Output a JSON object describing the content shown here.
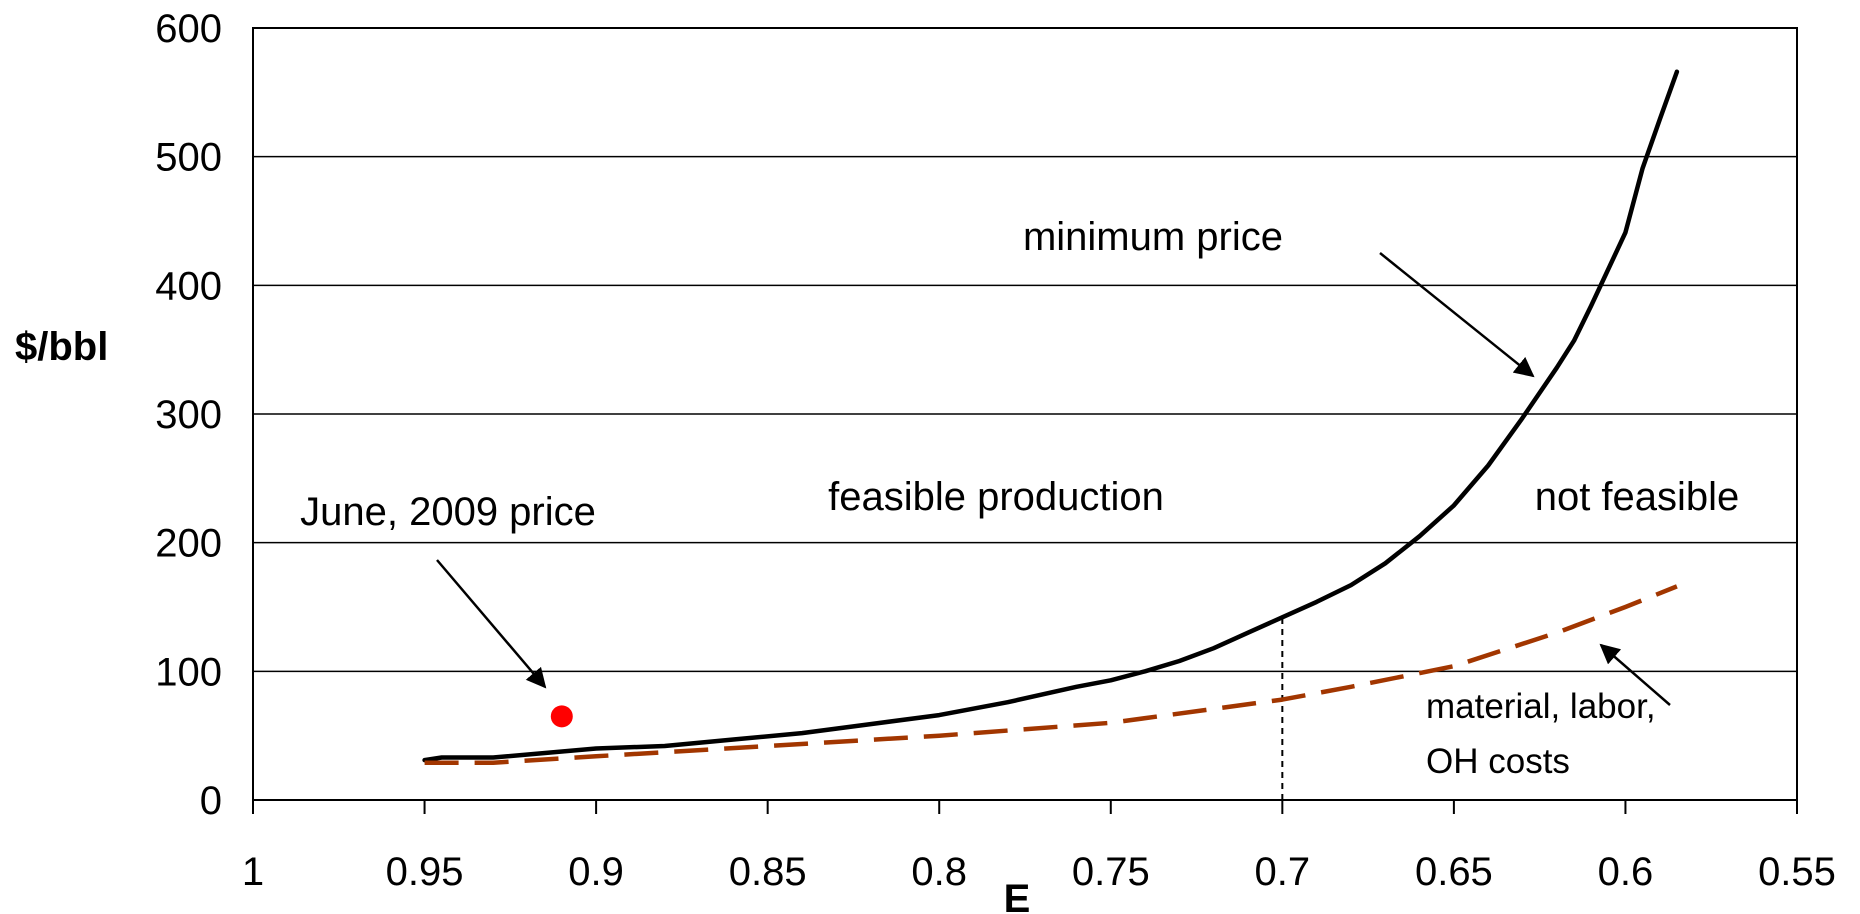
{
  "chart_data": {
    "type": "line",
    "xlabel": "E",
    "ylabel": "$/bbl",
    "xlim": [
      1,
      0.55
    ],
    "x_reversed": true,
    "ylim": [
      0,
      600
    ],
    "x_ticks": [
      1,
      0.95,
      0.9,
      0.85,
      0.8,
      0.75,
      0.7,
      0.65,
      0.6,
      0.55
    ],
    "y_ticks": [
      0,
      100,
      200,
      300,
      400,
      500,
      600
    ],
    "grid": "horizontal",
    "series": [
      {
        "key": "minimum-price",
        "style": "solid",
        "color": "#000000",
        "x": [
          0.95,
          0.945,
          0.93,
          0.9,
          0.88,
          0.86,
          0.84,
          0.82,
          0.8,
          0.78,
          0.76,
          0.75,
          0.74,
          0.73,
          0.72,
          0.71,
          0.7,
          0.69,
          0.68,
          0.67,
          0.66,
          0.65,
          0.64,
          0.63,
          0.62,
          0.615,
          0.61,
          0.6,
          0.595,
          0.59,
          0.585
        ],
        "y": [
          31,
          33,
          33,
          40,
          42,
          47,
          52,
          59,
          66,
          76,
          88,
          93,
          100,
          108,
          118,
          130,
          142,
          154,
          167,
          184,
          205,
          229,
          260,
          297,
          336,
          357,
          384,
          441,
          491,
          529,
          566
        ]
      },
      {
        "key": "material-labor-oh-costs",
        "style": "dashed",
        "color": "#a23600",
        "x": [
          0.95,
          0.93,
          0.9,
          0.85,
          0.8,
          0.75,
          0.7,
          0.68,
          0.65,
          0.62,
          0.6,
          0.585
        ],
        "y": [
          29,
          29,
          34,
          42,
          50,
          60,
          78,
          88,
          104,
          130,
          150,
          166
        ]
      }
    ],
    "markers": [
      {
        "label": "June, 2009 price",
        "x": 0.91,
        "y": 65,
        "color": "#ff0000"
      }
    ],
    "reference_lines": [
      {
        "x": 0.7,
        "y_from": 0,
        "y_to": 142,
        "style": "dotted"
      }
    ],
    "annotations": {
      "minimum_price": "minimum price",
      "feasible": "feasible production",
      "not_feasible": "not feasible",
      "june_price": "June, 2009 price",
      "costs_line1": "material, labor,",
      "costs_line2": "OH costs"
    }
  }
}
